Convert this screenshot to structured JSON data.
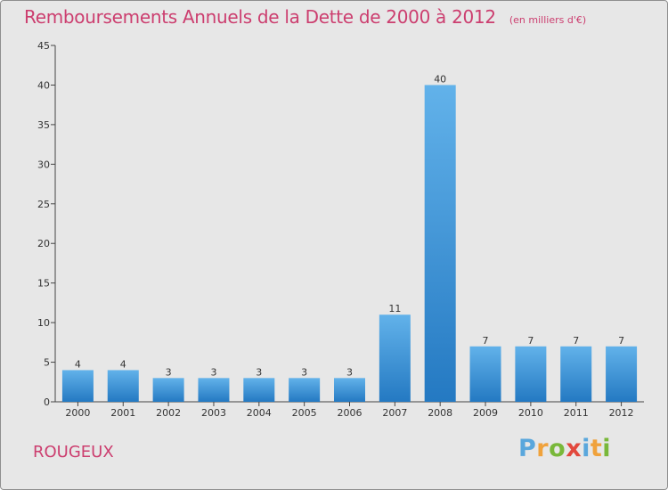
{
  "chart_data": {
    "type": "bar",
    "title": "Remboursements Annuels de la Dette de 2000 à 2012",
    "subtitle": "(en milliers d'€)",
    "categories": [
      "2000",
      "2001",
      "2002",
      "2003",
      "2004",
      "2005",
      "2006",
      "2007",
      "2008",
      "2009",
      "2010",
      "2011",
      "2012"
    ],
    "values": [
      4,
      4,
      3,
      3,
      3,
      3,
      3,
      11,
      40,
      7,
      7,
      7,
      7
    ],
    "data_labels": [
      "4",
      "4",
      "3",
      "3",
      "3",
      "3",
      "3",
      "11",
      "40",
      "7",
      "7",
      "7",
      "7"
    ],
    "ylim": [
      0,
      45
    ],
    "yticks": [
      0,
      5,
      10,
      15,
      20,
      25,
      30,
      35,
      40,
      45
    ],
    "xlabel": "",
    "ylabel": "",
    "grid": false,
    "legend": "none",
    "bar_color": "#3a8fd6"
  },
  "commune": "ROUGEUX",
  "brand": {
    "letters": [
      "P",
      "r",
      "o",
      "x",
      "i",
      "t",
      "i"
    ],
    "colors": [
      "#5aa7dc",
      "#f0a23b",
      "#79b83a",
      "#e2483d",
      "#5aa7dc",
      "#f0a23b",
      "#79b83a"
    ]
  },
  "colors": {
    "title": "#cc3e6f",
    "background": "#e7e7e7",
    "axis": "#444444"
  }
}
